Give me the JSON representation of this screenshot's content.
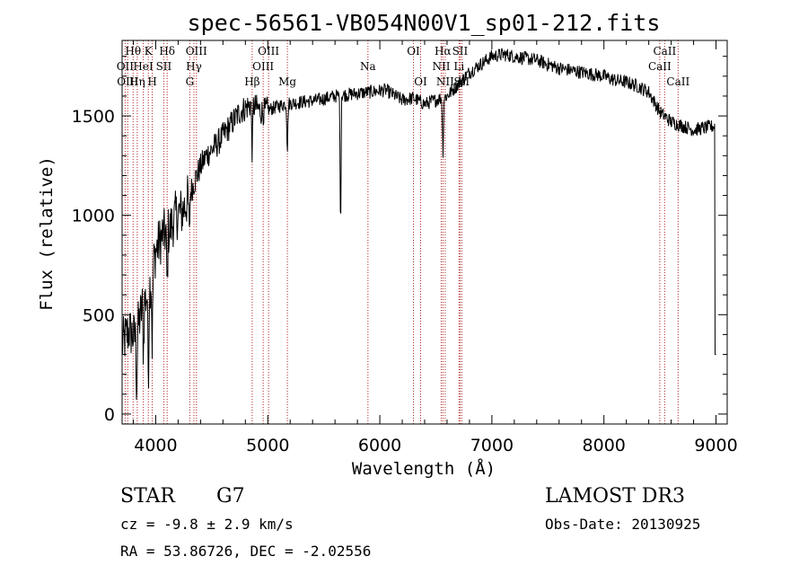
{
  "chart_data": {
    "type": "line",
    "title": "spec-56561-VB054N00V1_sp01-212.fits",
    "xlabel": "Wavelength (Å)",
    "ylabel": "Flux (relative)",
    "xlim": [
      3700,
      9100
    ],
    "ylim": [
      -50,
      1880
    ],
    "xticks": [
      4000,
      5000,
      6000,
      7000,
      8000,
      9000
    ],
    "yticks": [
      0,
      500,
      1000,
      1500
    ],
    "spectrum_anchors": {
      "wavelength": [
        3700,
        3760,
        3820,
        3880,
        3940,
        4000,
        4060,
        4120,
        4180,
        4240,
        4300,
        4380,
        4450,
        4550,
        4650,
        4750,
        4850,
        4950,
        5050,
        5150,
        5300,
        5450,
        5600,
        5750,
        5900,
        6050,
        6200,
        6300,
        6400,
        6500,
        6600,
        6700,
        6800,
        6900,
        7000,
        7100,
        7200,
        7300,
        7400,
        7500,
        7600,
        7700,
        7800,
        7900,
        8000,
        8100,
        8200,
        8300,
        8400,
        8500,
        8600,
        8700,
        8800,
        8900,
        9000
      ],
      "flux": [
        350,
        420,
        380,
        540,
        620,
        820,
        900,
        920,
        1000,
        1020,
        1100,
        1220,
        1300,
        1360,
        1440,
        1520,
        1560,
        1520,
        1540,
        1560,
        1570,
        1580,
        1600,
        1610,
        1620,
        1630,
        1580,
        1590,
        1560,
        1580,
        1600,
        1660,
        1720,
        1760,
        1800,
        1810,
        1800,
        1790,
        1780,
        1760,
        1740,
        1730,
        1720,
        1710,
        1700,
        1680,
        1670,
        1650,
        1620,
        1520,
        1470,
        1450,
        1430,
        1440,
        1450
      ]
    },
    "absorption_features": [
      {
        "wavelength": 3830,
        "depth": 300
      },
      {
        "wavelength": 3890,
        "depth": 250
      },
      {
        "wavelength": 3934,
        "depth": 450
      },
      {
        "wavelength": 3969,
        "depth": 400
      },
      {
        "wavelength": 4102,
        "depth": 300
      },
      {
        "wavelength": 4300,
        "depth": 200
      },
      {
        "wavelength": 4861,
        "depth": 250
      },
      {
        "wavelength": 5175,
        "depth": 250
      },
      {
        "wavelength": 5650,
        "depth": 700
      },
      {
        "wavelength": 6563,
        "depth": 300
      }
    ],
    "spectral_lines": [
      {
        "wavelength": 3727,
        "label": "OII",
        "row": 1
      },
      {
        "wavelength": 3750,
        "label": "OIII",
        "row": 2
      },
      {
        "wavelength": 3798,
        "label": "Hθ",
        "row": 0
      },
      {
        "wavelength": 3835,
        "label": "Hη",
        "row": 2
      },
      {
        "wavelength": 3889,
        "label": "HeI",
        "row": 1
      },
      {
        "wavelength": 3934,
        "label": "K",
        "row": 0
      },
      {
        "wavelength": 3969,
        "label": "H",
        "row": 2
      },
      {
        "wavelength": 4072,
        "label": "SII",
        "row": 1
      },
      {
        "wavelength": 4102,
        "label": "Hδ",
        "row": 0
      },
      {
        "wavelength": 4304,
        "label": "G",
        "row": 2
      },
      {
        "wavelength": 4341,
        "label": "Hγ",
        "row": 1
      },
      {
        "wavelength": 4363,
        "label": "OIII",
        "row": 0
      },
      {
        "wavelength": 4861,
        "label": "Hβ",
        "row": 2
      },
      {
        "wavelength": 4959,
        "label": "OIII",
        "row": 1
      },
      {
        "wavelength": 5007,
        "label": "OIII",
        "row": 0
      },
      {
        "wavelength": 5175,
        "label": "Mg",
        "row": 2
      },
      {
        "wavelength": 5894,
        "label": "Na",
        "row": 1
      },
      {
        "wavelength": 6300,
        "label": "OI",
        "row": 0
      },
      {
        "wavelength": 6364,
        "label": "OI",
        "row": 2
      },
      {
        "wavelength": 6548,
        "label": "NII",
        "row": 1
      },
      {
        "wavelength": 6563,
        "label": "Hα",
        "row": 0
      },
      {
        "wavelength": 6583,
        "label": "NII",
        "row": 2
      },
      {
        "wavelength": 6707,
        "label": "Li",
        "row": 1
      },
      {
        "wavelength": 6716,
        "label": "SII",
        "row": 0
      },
      {
        "wavelength": 6731,
        "label": "SII",
        "row": 2
      },
      {
        "wavelength": 8498,
        "label": "CaII",
        "row": 1
      },
      {
        "wavelength": 8542,
        "label": "CaII",
        "row": 0
      },
      {
        "wavelength": 8662,
        "label": "CaII",
        "row": 2
      }
    ]
  },
  "info": {
    "class_label": "STAR",
    "subclass": "G7",
    "survey": "LAMOST DR3",
    "redshift_line": "cz = -9.8 ± 2.9 km/s",
    "obs_date_line": "Obs-Date: 20130925",
    "coord_line": "RA =  53.86726, DEC =  -2.02556"
  },
  "colors": {
    "line_marker": "#b22222",
    "spectrum": "#000000",
    "axes": "#000000",
    "background": "#ffffff"
  }
}
